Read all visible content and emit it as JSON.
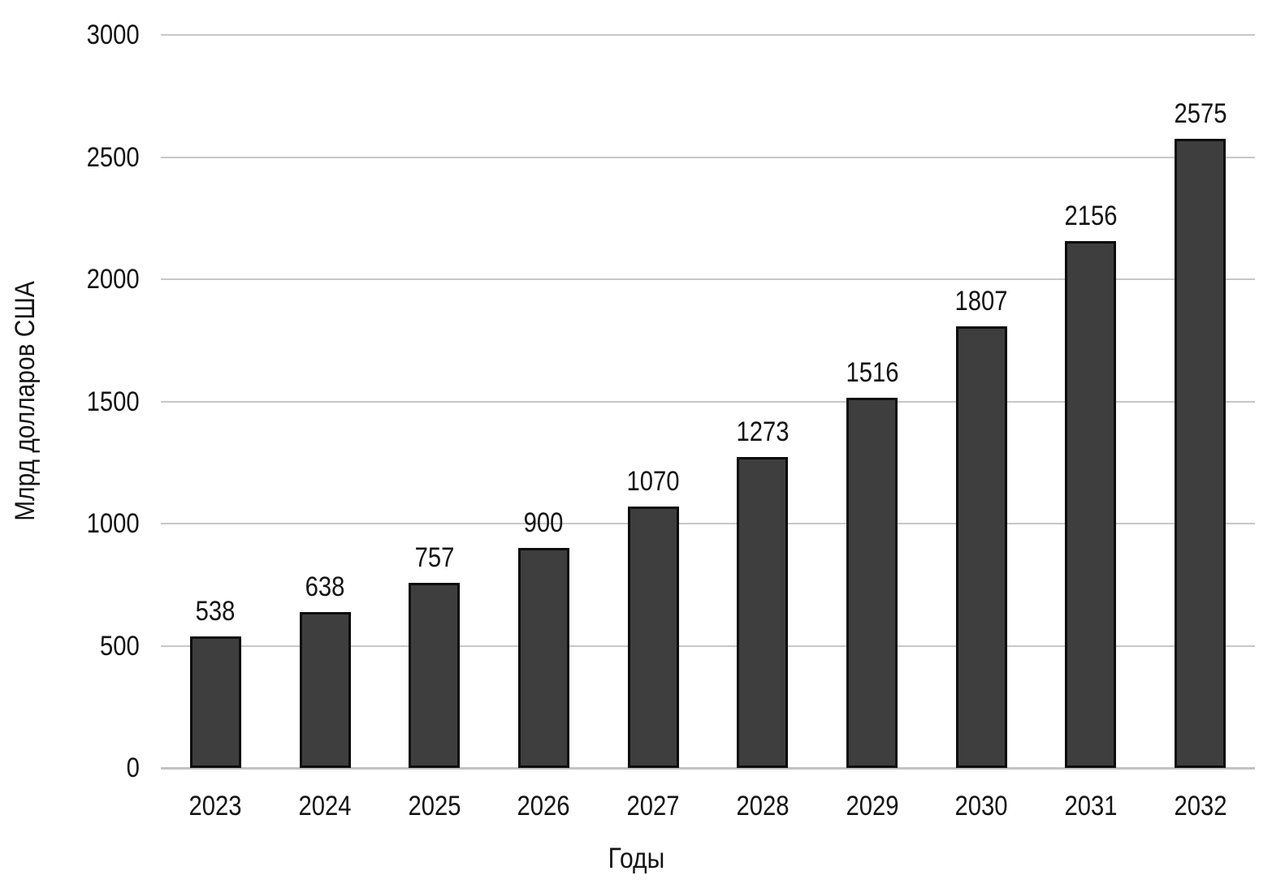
{
  "chart_data": {
    "type": "bar",
    "title": "",
    "categories": [
      "2023",
      "2024",
      "2025",
      "2026",
      "2027",
      "2028",
      "2029",
      "2030",
      "2031",
      "2032"
    ],
    "values": [
      538,
      638,
      757,
      900,
      1070,
      1273,
      1516,
      1807,
      2156,
      2575
    ],
    "xlabel": "Годы",
    "ylabel": "Млрд долларов США",
    "ylim": [
      0,
      3000
    ],
    "yticks": [
      0,
      500,
      1000,
      1500,
      2000,
      2500,
      3000
    ],
    "grid": "horizontal",
    "legend_position": "none",
    "value_labels_shown": true,
    "colors": {
      "bar_fill": "#3e3e3e",
      "bar_border": "#0d0d0d",
      "gridline": "#c7c7c7",
      "text": "#141414",
      "background": "#ffffff"
    }
  }
}
